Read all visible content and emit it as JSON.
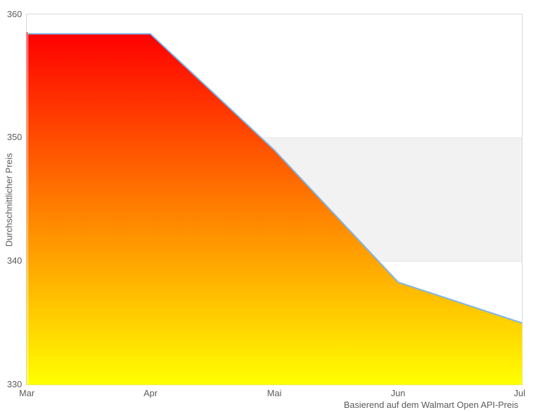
{
  "chart_data": {
    "type": "area",
    "categories": [
      "Mar",
      "Apr",
      "Mai",
      "Jun",
      "Jul"
    ],
    "series": [
      {
        "name": "Durchschnittlicher Preis",
        "values": [
          358.4,
          358.4,
          349.0,
          338.3,
          335.0
        ]
      }
    ],
    "xlabel": "Basierend auf dem Walmart Open API-Preis",
    "ylabel": "Durchschnittlicher Preis",
    "ylim": [
      330,
      360
    ],
    "y_ticks": [
      "330",
      "340",
      "350",
      "360"
    ],
    "y_tick_step": 10,
    "legend": "none",
    "grid": "horizontal gridlines; alternating gray band between 340 and 350; full plot border",
    "colors": {
      "line": "#7CB5EC",
      "area_gradient_top": "#FF0000",
      "area_gradient_bottom": "#FFFF00",
      "alternate_band": "#F2F2F2",
      "gridline": "#E6E6E6",
      "plot_border": "#D8D8D8",
      "label_text": "#5A5A5A",
      "background": "#FFFFFF"
    }
  }
}
